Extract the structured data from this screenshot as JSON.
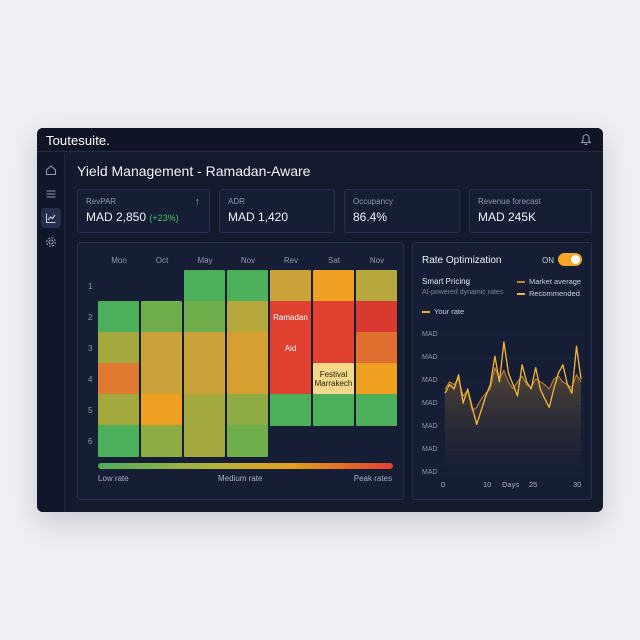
{
  "app": {
    "brand": "Toutesuite."
  },
  "page": {
    "title": "Yield Management - Ramadan-Aware"
  },
  "kpis": [
    {
      "label": "RevPAR",
      "value": "MAD 2,850",
      "delta": "(+23%)",
      "trend": "up"
    },
    {
      "label": "ADR",
      "value": "MAD 1,420"
    },
    {
      "label": "Occupancy",
      "value": "86.4%"
    },
    {
      "label": "Revenue forecast",
      "value": "MAD 245K"
    }
  ],
  "heatmap": {
    "columns": [
      "Mon",
      "Oct",
      "May",
      "Nov",
      "Rev",
      "Sat",
      "Nov"
    ],
    "rows": [
      "1",
      "2",
      "3",
      "4",
      "5",
      "6"
    ],
    "cells": [
      [
        null,
        null,
        "#4caf5a",
        "#4caf5a",
        "#c9a23a",
        "#f0a020",
        "#b6a83c"
      ],
      [
        "#4caf5a",
        "#6fae4a",
        "#6fae4a",
        "#b6a83c",
        "#df4030",
        "#df4030",
        "#d93a30"
      ],
      [
        "#a3a83e",
        "#c9a23a",
        "#c9a23a",
        "#d6a030",
        "#df4030",
        "#df4030",
        "#e07030"
      ],
      [
        "#e07a30",
        "#c9a23a",
        "#c9a23a",
        "#d6a030",
        "#df4030",
        "#f3d78a",
        "#f0a020"
      ],
      [
        "#a3a83e",
        "#f0a020",
        "#a3a83e",
        "#8fac44",
        "#4caf5a",
        "#4caf5a",
        "#4caf5a"
      ],
      [
        "#4caf5a",
        "#8fac44",
        "#a3a83e",
        "#6fae4a",
        null,
        null,
        null
      ]
    ],
    "events": [
      {
        "row": 1,
        "col": 4,
        "label": "Ramadan"
      },
      {
        "row": 2,
        "col": 4,
        "label": "Aid"
      },
      {
        "row": 3,
        "col": 5,
        "label": "Festival Marrakech"
      }
    ],
    "legend": {
      "low": "Low rate",
      "medium": "Medium rate",
      "peak": "Peak rates"
    }
  },
  "optimization": {
    "title": "Rate Optimization",
    "toggle_label": "ON",
    "toggle_on": true,
    "smart_pricing": "Smart Pricing",
    "subtitle": "AI-powered dynamic rates",
    "legend": {
      "market": "Market average",
      "recommended": "Recommended",
      "your_rate": "Your rate"
    },
    "y_labels": [
      "MAD",
      "MAD",
      "MAD",
      "MAD",
      "MAD",
      "MAD",
      "MAD"
    ],
    "x_labels": [
      "0",
      "10",
      "Days",
      "25",
      "30"
    ],
    "colors": {
      "accent": "#f5a623",
      "market": "#c8842a",
      "recommended": "#f5b83a"
    }
  },
  "chart_data": {
    "type": "line",
    "title": "",
    "xlabel": "Days",
    "ylabel": "MAD",
    "xlim": [
      0,
      30
    ],
    "ylim": [
      0,
      100
    ],
    "series": [
      {
        "name": "Market average",
        "x": [
          0,
          1,
          2,
          3,
          4,
          5,
          6,
          7,
          8,
          9,
          10,
          11,
          12,
          13,
          14,
          15,
          16,
          17,
          18,
          19,
          20,
          21,
          22,
          23,
          24,
          25,
          26,
          27,
          28,
          29,
          30
        ],
        "values": [
          55,
          60,
          58,
          62,
          50,
          54,
          40,
          42,
          48,
          52,
          55,
          70,
          62,
          68,
          60,
          55,
          60,
          64,
          58,
          56,
          62,
          60,
          58,
          55,
          62,
          64,
          60,
          58,
          56,
          65,
          60
        ]
      },
      {
        "name": "Recommended",
        "x": [
          0,
          1,
          2,
          3,
          4,
          5,
          6,
          7,
          8,
          9,
          10,
          11,
          12,
          13,
          14,
          15,
          16,
          17,
          18,
          19,
          20,
          21,
          22,
          23,
          24,
          25,
          26,
          27,
          28,
          29,
          30
        ],
        "values": [
          52,
          58,
          55,
          65,
          45,
          55,
          42,
          30,
          40,
          50,
          58,
          78,
          60,
          88,
          66,
          58,
          50,
          72,
          60,
          55,
          70,
          55,
          48,
          42,
          55,
          66,
          72,
          58,
          52,
          85,
          62
        ]
      }
    ]
  }
}
